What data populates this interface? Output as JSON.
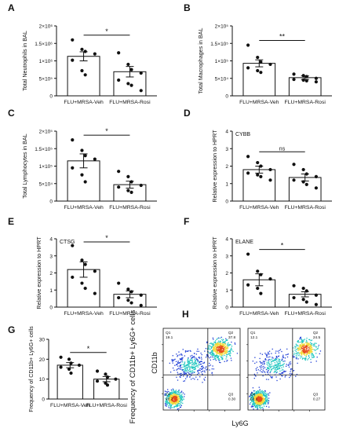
{
  "chart_data": [
    {
      "panel": "A",
      "type": "bar",
      "ylabel": "Total Neutrophils in BAL",
      "categories": [
        "FLU+MRSA-Veh",
        "FLU+MRSA-Rosi"
      ],
      "yticks": [
        "0",
        "5×10⁵",
        "1×10⁶",
        "1.5×10⁶",
        "2×10⁶"
      ],
      "ylim": [
        0,
        2000000
      ],
      "means": [
        1130000,
        690000
      ],
      "sem": [
        130000,
        150000
      ],
      "points": [
        [
          1600000,
          1330000,
          1270000,
          1200000,
          1020000,
          720000,
          600000
        ],
        [
          1230000,
          900000,
          750000,
          650000,
          450000,
          350000,
          300000,
          150000
        ]
      ],
      "significance": "*"
    },
    {
      "panel": "B",
      "type": "bar",
      "ylabel": "Total Macrophages in BAL",
      "categories": [
        "FLU+MRSA-Veh",
        "FLU+MRSA-Rosi"
      ],
      "yticks": [
        "0",
        "5×10⁴",
        "1×10⁵",
        "1.5×10⁵",
        "2×10⁵"
      ],
      "ylim": [
        0,
        200000
      ],
      "means": [
        93000,
        52000
      ],
      "sem": [
        10000,
        5000
      ],
      "points": [
        [
          145000,
          110000,
          97000,
          90000,
          80000,
          72000,
          67000
        ],
        [
          62000,
          58000,
          55000,
          50000,
          47000,
          45000,
          43000,
          40000
        ]
      ],
      "significance": "**"
    },
    {
      "panel": "C",
      "type": "bar",
      "ylabel": "Total Lymphocytes in BAL",
      "categories": [
        "FLU+MRSA-Veh",
        "FLU+MRSA-Rosi"
      ],
      "yticks": [
        "0",
        "5×10⁴",
        "1×10⁵",
        "1.5×10⁵",
        "2×10⁵"
      ],
      "ylim": [
        0,
        200000
      ],
      "means": [
        115000,
        47000
      ],
      "sem": [
        20000,
        10000
      ],
      "points": [
        [
          175000,
          145000,
          130000,
          120000,
          95000,
          75000,
          55000
        ],
        [
          85000,
          70000,
          55000,
          45000,
          40000,
          30000,
          25000
        ]
      ],
      "significance": "*"
    },
    {
      "panel": "D",
      "type": "bar",
      "ylabel": "Relative expression to HPRT",
      "series_label": "CYBB",
      "categories": [
        "FLU+MRSA-Veh",
        "FLU+MRSA-Rosi"
      ],
      "yticks": [
        "0",
        "1",
        "2",
        "3",
        "4"
      ],
      "ylim": [
        0,
        4
      ],
      "means": [
        1.8,
        1.35
      ],
      "sem": [
        0.2,
        0.2
      ],
      "points": [
        [
          2.55,
          2.2,
          2.0,
          1.8,
          1.6,
          1.5,
          1.4,
          1.2
        ],
        [
          2.1,
          1.8,
          1.55,
          1.4,
          1.2,
          1.1,
          0.95,
          0.75
        ]
      ],
      "significance": "ns"
    },
    {
      "panel": "E",
      "type": "bar",
      "ylabel": "Relative expression to HPRT",
      "series_label": "CTSG",
      "categories": [
        "FLU+MRSA-Veh",
        "FLU+MRSA-Rosi"
      ],
      "yticks": [
        "0",
        "1",
        "2",
        "3",
        "4"
      ],
      "ylim": [
        0,
        4
      ],
      "means": [
        2.2,
        0.75
      ],
      "sem": [
        0.45,
        0.2
      ],
      "points": [
        [
          3.6,
          2.75,
          2.5,
          2.1,
          1.75,
          1.4,
          1.1,
          0.8
        ],
        [
          1.4,
          1.05,
          0.9,
          0.7,
          0.55,
          0.4,
          0.25,
          0.1
        ]
      ],
      "significance": "*"
    },
    {
      "panel": "F",
      "type": "bar",
      "ylabel": "Relative expression to HPRT",
      "series_label": "ELANE",
      "categories": [
        "FLU+MRSA-Veh",
        "FLU+MRSA-Rosi"
      ],
      "yticks": [
        "0",
        "1",
        "2",
        "3",
        "4"
      ],
      "ylim": [
        0,
        4
      ],
      "means": [
        1.6,
        0.75
      ],
      "sem": [
        0.35,
        0.15
      ],
      "points": [
        [
          3.1,
          2.1,
          1.9,
          1.65,
          1.3,
          1.1,
          0.8
        ],
        [
          1.25,
          1.1,
          0.95,
          0.7,
          0.55,
          0.45,
          0.3,
          0.15
        ]
      ],
      "significance": "*"
    },
    {
      "panel": "G",
      "type": "bar",
      "ylabel": "Frequency of CD11b+ Ly6G+ cells",
      "categories": [
        "FLU+MRSA-Veh",
        "FLU+MRSA-Rosi"
      ],
      "yticks": [
        "0",
        "10",
        "20",
        "30"
      ],
      "ylim": [
        0,
        30
      ],
      "means": [
        17,
        10
      ],
      "sem": [
        1.3,
        1.3
      ],
      "points": [
        [
          21,
          20,
          18,
          17,
          16,
          15,
          13
        ],
        [
          14,
          12.5,
          11,
          10,
          9,
          8,
          7
        ]
      ],
      "significance": "*"
    },
    {
      "panel": "H",
      "type": "scatter",
      "ylabel": "Frequency of CD11b+ Ly6G+ cells",
      "xlabel": "Ly6G",
      "yaxis_marker": "CD11b",
      "plots": [
        {
          "q1": "Q1\n19.1",
          "q2": "Q2\n37.8",
          "q3": "Q3\n0.30",
          "q4": "Q4\n42.7"
        },
        {
          "q1": "Q1\n12.1",
          "q2": "Q2\n24.5",
          "q3": "Q3\n0.27",
          "q4": "Q4\n63.1"
        }
      ]
    }
  ],
  "colors": {
    "ink": "#111111",
    "bar_fill": "#ffffff",
    "density_low": "#1f3fd6",
    "density_mid": "#21c7c0",
    "density_high": "#f2d93a",
    "density_peak": "#e64a19"
  }
}
